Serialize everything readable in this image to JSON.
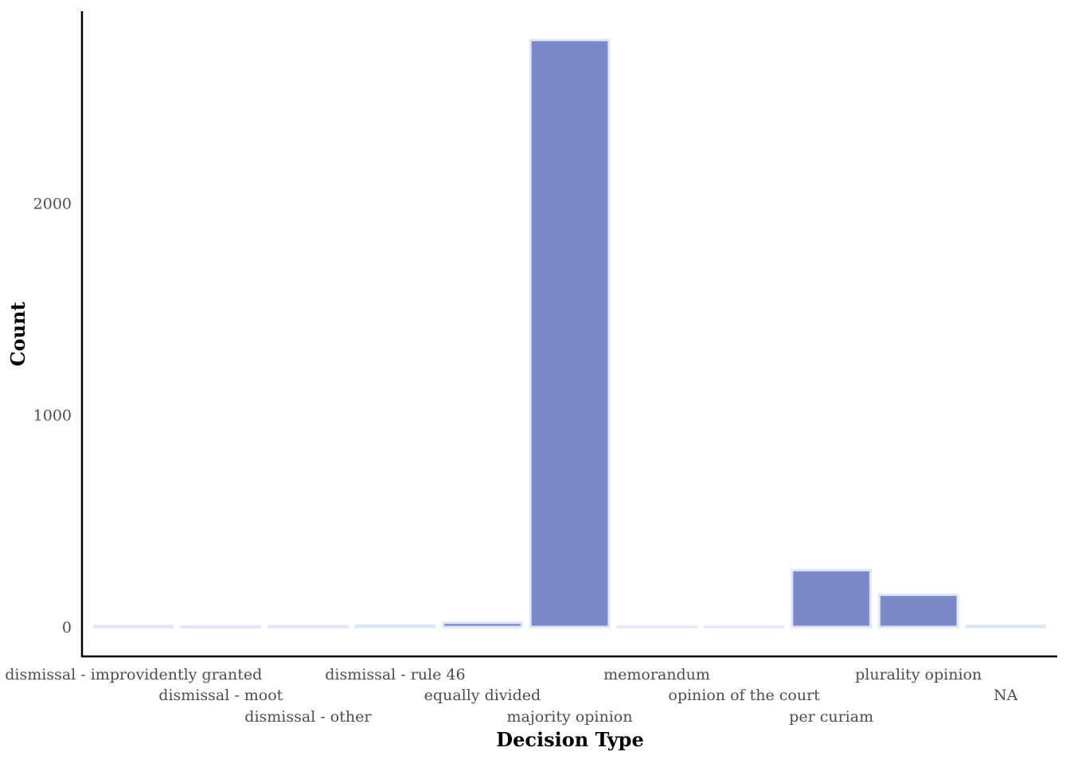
{
  "chart_data": {
    "type": "bar",
    "title": "",
    "xlabel": "Decision Type",
    "ylabel": "Count",
    "categories": [
      "dismissal - improvidently granted",
      "dismissal - moot",
      "dismissal - other",
      "dismissal - rule 46",
      "equally divided",
      "majority opinion",
      "memorandum",
      "opinion of the court",
      "per curiam",
      "plurality opinion",
      "NA"
    ],
    "values": [
      3,
      2,
      3,
      6,
      20,
      2770,
      1,
      1,
      268,
      152,
      5
    ],
    "ylim": [
      0,
      2900
    ],
    "yticks": [
      0,
      1000,
      2000
    ],
    "ytick_labels": [
      "0",
      "1000",
      "2000"
    ],
    "grid": false,
    "legend": "none",
    "colors": {
      "bar_fill": "#7b89c9",
      "bar_stroke": "#dde6fb",
      "axis": "#000000",
      "tick_text": "#4d4d4d",
      "title_text": "#000000"
    }
  }
}
